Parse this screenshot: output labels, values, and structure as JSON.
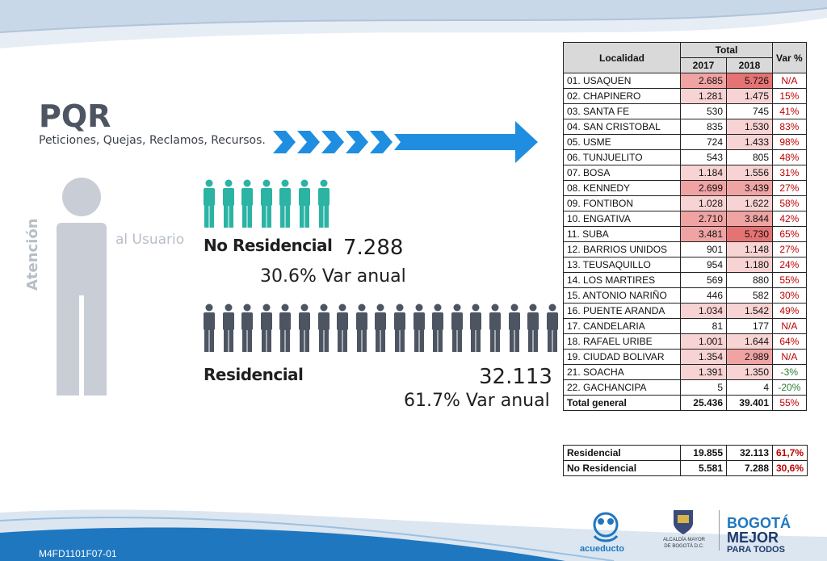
{
  "header": {
    "title": "PQR",
    "subtitle": "Peticiones, Quejas, Reclamos, Recursos."
  },
  "figure": {
    "label_atencion": "Atención",
    "label_usuario": "al Usuario"
  },
  "no_residencial": {
    "label": "No Residencial",
    "value": "7.288",
    "var_text": "30.6% Var  anual",
    "icon_count": 7,
    "color": "#2bb3a4"
  },
  "residencial": {
    "label": "Residencial",
    "value": "32.113",
    "var_text": "61.7% Var  anual",
    "icon_count": 19,
    "color": "#4d5563"
  },
  "table": {
    "headers": {
      "localidad": "Localidad",
      "total": "Total",
      "y2017": "2017",
      "y2018": "2018",
      "var": "Var %"
    },
    "rows": [
      {
        "name": "01. USAQUEN",
        "v2017": "2.685",
        "v2018": "5.726",
        "var": "N/A",
        "h17": 2,
        "h18": 3
      },
      {
        "name": "02. CHAPINERO",
        "v2017": "1.281",
        "v2018": "1.475",
        "var": "15%",
        "h17": 1,
        "h18": 1
      },
      {
        "name": "03. SANTA FE",
        "v2017": "530",
        "v2018": "745",
        "var": "41%",
        "h17": 0,
        "h18": 0
      },
      {
        "name": "04. SAN CRISTOBAL",
        "v2017": "835",
        "v2018": "1.530",
        "var": "83%",
        "h17": 0,
        "h18": 1
      },
      {
        "name": "05. USME",
        "v2017": "724",
        "v2018": "1.433",
        "var": "98%",
        "h17": 0,
        "h18": 1
      },
      {
        "name": "06. TUNJUELITO",
        "v2017": "543",
        "v2018": "805",
        "var": "48%",
        "h17": 0,
        "h18": 0
      },
      {
        "name": "07. BOSA",
        "v2017": "1.184",
        "v2018": "1.556",
        "var": "31%",
        "h17": 1,
        "h18": 1
      },
      {
        "name": "08. KENNEDY",
        "v2017": "2.699",
        "v2018": "3.439",
        "var": "27%",
        "h17": 2,
        "h18": 2
      },
      {
        "name": "09. FONTIBON",
        "v2017": "1.028",
        "v2018": "1.622",
        "var": "58%",
        "h17": 1,
        "h18": 1
      },
      {
        "name": "10. ENGATIVA",
        "v2017": "2.710",
        "v2018": "3.844",
        "var": "42%",
        "h17": 2,
        "h18": 2
      },
      {
        "name": "11. SUBA",
        "v2017": "3.481",
        "v2018": "5.730",
        "var": "65%",
        "h17": 2,
        "h18": 3
      },
      {
        "name": "12. BARRIOS UNIDOS",
        "v2017": "901",
        "v2018": "1.148",
        "var": "27%",
        "h17": 0,
        "h18": 1
      },
      {
        "name": "13. TEUSAQUILLO",
        "v2017": "954",
        "v2018": "1.180",
        "var": "24%",
        "h17": 0,
        "h18": 1
      },
      {
        "name": "14. LOS MARTIRES",
        "v2017": "569",
        "v2018": "880",
        "var": "55%",
        "h17": 0,
        "h18": 0
      },
      {
        "name": "15. ANTONIO NARIÑO",
        "v2017": "446",
        "v2018": "582",
        "var": "30%",
        "h17": 0,
        "h18": 0
      },
      {
        "name": "16. PUENTE ARANDA",
        "v2017": "1.034",
        "v2018": "1.542",
        "var": "49%",
        "h17": 1,
        "h18": 1
      },
      {
        "name": "17. CANDELARIA",
        "v2017": "81",
        "v2018": "177",
        "var": "N/A",
        "h17": 0,
        "h18": 0
      },
      {
        "name": "18. RAFAEL URIBE",
        "v2017": "1.001",
        "v2018": "1.644",
        "var": "64%",
        "h17": 1,
        "h18": 1
      },
      {
        "name": "19. CIUDAD BOLIVAR",
        "v2017": "1.354",
        "v2018": "2.989",
        "var": "N/A",
        "h17": 1,
        "h18": 2
      },
      {
        "name": "21. SOACHA",
        "v2017": "1.391",
        "v2018": "1.350",
        "var": "-3%",
        "h17": 1,
        "h18": 1
      },
      {
        "name": "22. GACHANCIPA",
        "v2017": "5",
        "v2018": "4",
        "var": "-20%",
        "h17": 0,
        "h18": 0
      }
    ],
    "total": {
      "name": "Total general",
      "v2017": "25.436",
      "v2018": "39.401",
      "var": "55%"
    }
  },
  "summary": [
    {
      "name": "Residencial",
      "v2017": "19.855",
      "v2018": "32.113",
      "var": "61,7%"
    },
    {
      "name": "No Residencial",
      "v2017": "5.581",
      "v2018": "7.288",
      "var": "30,6%"
    }
  ],
  "heat_colors": [
    "#ffffff",
    "#f8d3d3",
    "#f0a3a3",
    "#e67373"
  ],
  "footer": {
    "code": "M4FD1101F07-01",
    "logo_acueducto": "acueducto",
    "logo_alcaldia_1": "ALCALDÍA MAYOR",
    "logo_alcaldia_2": "DE BOGOTÁ D.C.",
    "logo_bogota_1": "BOGOTÁ",
    "logo_bogota_2": "MEJOR",
    "logo_bogota_3": "PARA TODOS"
  }
}
